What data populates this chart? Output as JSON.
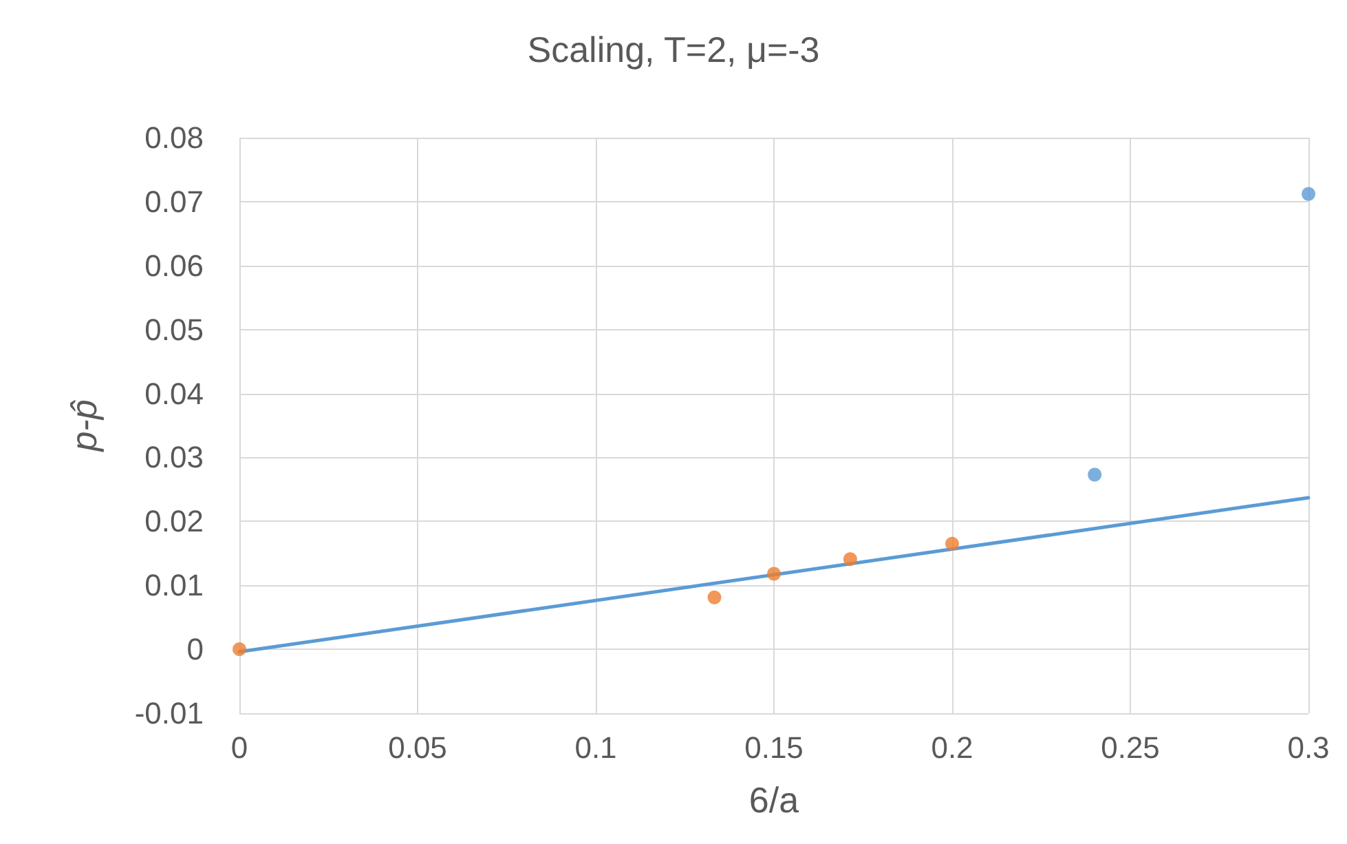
{
  "chart_data": {
    "type": "scatter",
    "title": "Scaling, T=2, μ=-3",
    "xlabel": "6/a",
    "ylabel": "p-p̂",
    "xlim": [
      0,
      0.3
    ],
    "xticks": [
      0,
      0.05,
      0.1,
      0.15,
      0.2,
      0.25,
      0.3
    ],
    "ylim": [
      -0.01,
      0.08
    ],
    "yticks": [
      -0.01,
      0,
      0.01,
      0.02,
      0.03,
      0.04,
      0.05,
      0.06,
      0.07,
      0.08
    ],
    "grid": true,
    "marker": "circle",
    "series": [
      {
        "type": "scatter",
        "color": "#5b9bd5",
        "x": [
          0.24,
          0.3
        ],
        "values": [
          0.0273,
          0.0712
        ]
      },
      {
        "type": "scatter",
        "color": "#ed7d31",
        "x": [
          0,
          0.1333,
          0.15,
          0.1714,
          0.2
        ],
        "values": [
          0,
          0.0081,
          0.0118,
          0.0141,
          0.0165
        ]
      },
      {
        "type": "line",
        "color": "#5b9bd5",
        "marker": "none",
        "line_style": "solid",
        "x": [
          0,
          0.3
        ],
        "values": [
          -0.0004,
          0.0237
        ]
      }
    ]
  }
}
